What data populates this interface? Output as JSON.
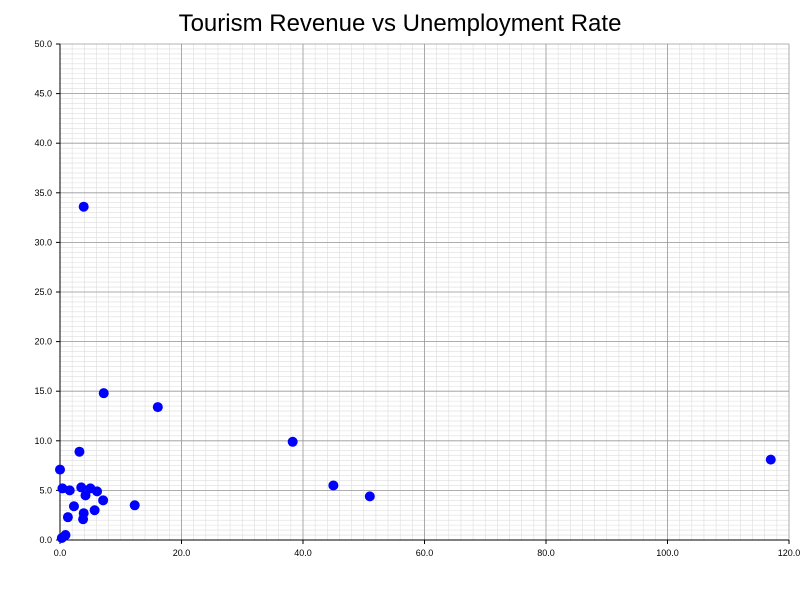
{
  "chart_data": {
    "type": "scatter",
    "title": "Tourism Revenue vs Unemployment Rate",
    "xlabel": "",
    "ylabel": "",
    "xlim": [
      0,
      120
    ],
    "ylim": [
      0,
      50
    ],
    "x_ticks": [
      "0.0",
      "20.0",
      "40.0",
      "60.0",
      "80.0",
      "100.0",
      "120.0"
    ],
    "y_ticks": [
      "0.0",
      "5.0",
      "10.0",
      "15.0",
      "20.0",
      "25.0",
      "30.0",
      "35.0",
      "40.0",
      "45.0",
      "50.0"
    ],
    "grid": true,
    "legend": "none",
    "point_color": "#0000ff",
    "series": [
      {
        "points": [
          {
            "x": 3.9,
            "y": 33.6
          },
          {
            "x": 7.2,
            "y": 14.8
          },
          {
            "x": 16.1,
            "y": 13.4
          },
          {
            "x": 38.3,
            "y": 9.9
          },
          {
            "x": 117.0,
            "y": 8.1
          },
          {
            "x": 3.2,
            "y": 8.9
          },
          {
            "x": 0.0,
            "y": 7.1
          },
          {
            "x": 0.4,
            "y": 5.2
          },
          {
            "x": 1.6,
            "y": 5.0
          },
          {
            "x": 3.5,
            "y": 5.3
          },
          {
            "x": 4.2,
            "y": 4.5
          },
          {
            "x": 5.0,
            "y": 5.2
          },
          {
            "x": 6.1,
            "y": 4.9
          },
          {
            "x": 45.0,
            "y": 5.5
          },
          {
            "x": 51.0,
            "y": 4.4
          },
          {
            "x": 7.1,
            "y": 4.0
          },
          {
            "x": 2.3,
            "y": 3.4
          },
          {
            "x": 12.3,
            "y": 3.5
          },
          {
            "x": 5.7,
            "y": 3.0
          },
          {
            "x": 3.9,
            "y": 2.7
          },
          {
            "x": 1.3,
            "y": 2.3
          },
          {
            "x": 3.8,
            "y": 2.1
          },
          {
            "x": 0.9,
            "y": 0.5
          },
          {
            "x": 0.3,
            "y": 0.2
          }
        ]
      }
    ]
  }
}
